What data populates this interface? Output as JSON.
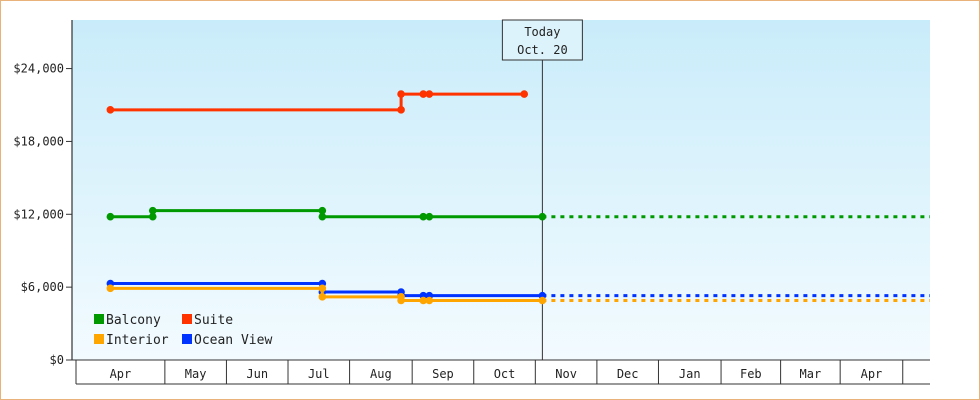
{
  "chart_data": {
    "type": "line",
    "title": "",
    "xlabel": "",
    "ylabel": "",
    "ylim": [
      0,
      28000
    ],
    "y_ticks": [
      {
        "value": 0,
        "label": "$0"
      },
      {
        "value": 6000,
        "label": "$6,000"
      },
      {
        "value": 12000,
        "label": "$12,000"
      },
      {
        "value": 18000,
        "label": "$18,000"
      },
      {
        "value": 24000,
        "label": "$24,000"
      }
    ],
    "x_start": "2024-03-01",
    "x_end": "2025-04-30",
    "months": [
      {
        "label": "Apr",
        "date": "2024-04-01"
      },
      {
        "label": "May",
        "date": "2024-05-01"
      },
      {
        "label": "Jun",
        "date": "2024-06-01"
      },
      {
        "label": "Jul",
        "date": "2024-07-01"
      },
      {
        "label": "Aug",
        "date": "2024-08-01"
      },
      {
        "label": "Sep",
        "date": "2024-09-01"
      },
      {
        "label": "Oct",
        "date": "2024-10-01"
      },
      {
        "label": "Nov",
        "date": "2024-11-01"
      },
      {
        "label": "Dec",
        "date": "2024-12-01"
      },
      {
        "label": "Jan",
        "date": "2025-01-01"
      },
      {
        "label": "Feb",
        "date": "2025-02-01"
      },
      {
        "label": "Mar",
        "date": "2025-03-01"
      },
      {
        "label": "Apr",
        "date": "2025-04-01"
      }
    ],
    "today": {
      "line1": "Today",
      "line2": "Oct. 20",
      "date": "2024-10-20"
    },
    "projection_end": "2025-04-30",
    "grid": false,
    "legend_position": "bottom-left",
    "series": [
      {
        "name": "Suite",
        "color": "#ff3300",
        "projection": false,
        "points": [
          {
            "x": "2024-03-20",
            "y": 20600
          },
          {
            "x": "2024-08-11",
            "y": 20600
          },
          {
            "x": "2024-08-11",
            "y": 21900
          },
          {
            "x": "2024-08-22",
            "y": 21900
          },
          {
            "x": "2024-08-25",
            "y": 21900
          },
          {
            "x": "2024-10-11",
            "y": 21900
          }
        ]
      },
      {
        "name": "Balcony",
        "color": "#009900",
        "projection": true,
        "points": [
          {
            "x": "2024-03-20",
            "y": 11800
          },
          {
            "x": "2024-04-10",
            "y": 11800
          },
          {
            "x": "2024-04-10",
            "y": 12300
          },
          {
            "x": "2024-07-03",
            "y": 12300
          },
          {
            "x": "2024-07-03",
            "y": 11800
          },
          {
            "x": "2024-08-22",
            "y": 11800
          },
          {
            "x": "2024-08-25",
            "y": 11800
          },
          {
            "x": "2024-10-20",
            "y": 11800
          }
        ]
      },
      {
        "name": "Ocean View",
        "color": "#0033ff",
        "projection": true,
        "points": [
          {
            "x": "2024-03-20",
            "y": 6300
          },
          {
            "x": "2024-07-03",
            "y": 6300
          },
          {
            "x": "2024-07-03",
            "y": 5600
          },
          {
            "x": "2024-08-11",
            "y": 5600
          },
          {
            "x": "2024-08-11",
            "y": 5300
          },
          {
            "x": "2024-08-22",
            "y": 5300
          },
          {
            "x": "2024-08-25",
            "y": 5300
          },
          {
            "x": "2024-10-20",
            "y": 5300
          }
        ]
      },
      {
        "name": "Interior",
        "color": "#ffa500",
        "projection": true,
        "points": [
          {
            "x": "2024-03-20",
            "y": 5900
          },
          {
            "x": "2024-07-03",
            "y": 5900
          },
          {
            "x": "2024-07-03",
            "y": 5200
          },
          {
            "x": "2024-08-11",
            "y": 5200
          },
          {
            "x": "2024-08-11",
            "y": 4900
          },
          {
            "x": "2024-08-22",
            "y": 4900
          },
          {
            "x": "2024-08-25",
            "y": 4900
          },
          {
            "x": "2024-10-20",
            "y": 4900
          }
        ]
      }
    ],
    "legend": [
      {
        "name": "Balcony",
        "color": "#009900"
      },
      {
        "name": "Suite",
        "color": "#ff3300"
      },
      {
        "name": "Interior",
        "color": "#ffa500"
      },
      {
        "name": "Ocean View",
        "color": "#0033ff"
      }
    ]
  },
  "colors": {
    "plot_bg_top": "#c9ecfa",
    "plot_bg_bottom": "#f3fbff",
    "frame_border": "#e8b27a",
    "axis": "#333333"
  }
}
